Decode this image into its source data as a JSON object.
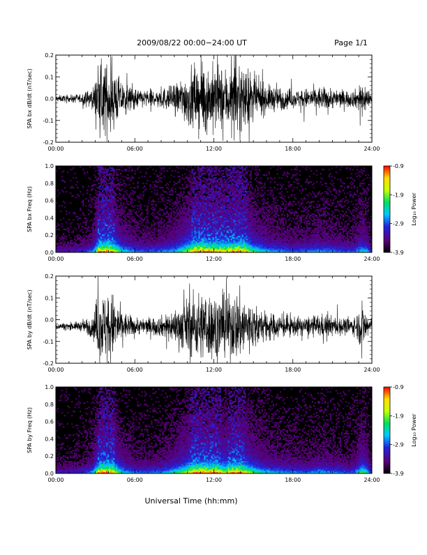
{
  "header": {
    "date_range": "2009/08/22  00:00−24:00 UT",
    "page": "Page 1/1"
  },
  "footer": {
    "xlabel": "Universal Time (hh:mm)"
  },
  "colorbar": {
    "label": "Log₁₀ Power",
    "ticks": [
      "-0.9",
      "-1.9",
      "-2.9",
      "-3.9"
    ],
    "range": [
      -3.9,
      -0.9
    ],
    "colors": [
      "#000000",
      "#5a007a",
      "#2222dd",
      "#00c8ff",
      "#00e060",
      "#c8ff00",
      "#ffdd00",
      "#ff0000"
    ]
  },
  "chart_data": [
    {
      "type": "line",
      "name": "waveform-bx",
      "ylabel": "SPA bx dB/dt (nT/sec)",
      "xlim": [
        0,
        24
      ],
      "ylim": [
        -0.2,
        0.2
      ],
      "xticks": [
        "00:00",
        "06:00",
        "12:00",
        "18:00",
        "24:00"
      ],
      "yticks": [
        "-0.2",
        "-0.1",
        "0.0",
        "0.1",
        "0.2"
      ],
      "baseline": 0.0,
      "amplitude_envelope": {
        "x": [
          0,
          1,
          2,
          2.8,
          3.3,
          3.8,
          4.3,
          5,
          6,
          7,
          8,
          9,
          9.8,
          10.5,
          11,
          11.5,
          12,
          12.8,
          13.5,
          14,
          14.5,
          15,
          16,
          17,
          18,
          19,
          20,
          21,
          22,
          22.7,
          23.2,
          23.6,
          24
        ],
        "y": [
          0.02,
          0.02,
          0.03,
          0.06,
          0.2,
          0.2,
          0.2,
          0.1,
          0.06,
          0.05,
          0.06,
          0.08,
          0.14,
          0.2,
          0.2,
          0.2,
          0.2,
          0.18,
          0.2,
          0.2,
          0.18,
          0.13,
          0.08,
          0.07,
          0.05,
          0.06,
          0.07,
          0.06,
          0.05,
          0.05,
          0.1,
          0.08,
          0.02
        ]
      }
    },
    {
      "type": "heatmap",
      "name": "spectrogram-bx",
      "ylabel": "SPA bx Freq (Hz)",
      "xlim": [
        0,
        24
      ],
      "ylim": [
        0,
        1.0
      ],
      "xticks": [
        "00:00",
        "06:00",
        "12:00",
        "18:00",
        "24:00"
      ],
      "yticks": [
        "0.0",
        "0.2",
        "0.4",
        "0.6",
        "0.8",
        "1.0"
      ],
      "zlim": [
        -3.9,
        -0.9
      ]
    },
    {
      "type": "line",
      "name": "waveform-by",
      "ylabel": "SPA by dB/dt (nT/sec)",
      "xlim": [
        0,
        24
      ],
      "ylim": [
        -0.2,
        0.2
      ],
      "xticks": [
        "00:00",
        "06:00",
        "12:00",
        "18:00",
        "24:00"
      ],
      "yticks": [
        "-0.2",
        "-0.1",
        "0.0",
        "0.1",
        "0.2"
      ],
      "baseline": -0.03,
      "amplitude_envelope": {
        "x": [
          0,
          1,
          2,
          2.8,
          3.3,
          3.8,
          4.3,
          5,
          6,
          7,
          8,
          9,
          9.8,
          10.5,
          11,
          11.5,
          12,
          12.8,
          13.5,
          14,
          14.5,
          15,
          16,
          17,
          18,
          19,
          20,
          21,
          22,
          22.7,
          23.2,
          23.6,
          24
        ],
        "y": [
          0.02,
          0.02,
          0.03,
          0.07,
          0.2,
          0.2,
          0.2,
          0.09,
          0.05,
          0.05,
          0.06,
          0.1,
          0.15,
          0.2,
          0.2,
          0.2,
          0.2,
          0.17,
          0.2,
          0.2,
          0.17,
          0.13,
          0.08,
          0.07,
          0.06,
          0.05,
          0.07,
          0.06,
          0.05,
          0.05,
          0.13,
          0.1,
          0.02
        ]
      }
    },
    {
      "type": "heatmap",
      "name": "spectrogram-by",
      "ylabel": "SPA by Freq (Hz)",
      "xlim": [
        0,
        24
      ],
      "ylim": [
        0,
        1.0
      ],
      "xticks": [
        "00:00",
        "06:00",
        "12:00",
        "18:00",
        "24:00"
      ],
      "yticks": [
        "0.0",
        "0.2",
        "0.4",
        "0.6",
        "0.8",
        "1.0"
      ],
      "zlim": [
        -3.9,
        -0.9
      ]
    }
  ]
}
